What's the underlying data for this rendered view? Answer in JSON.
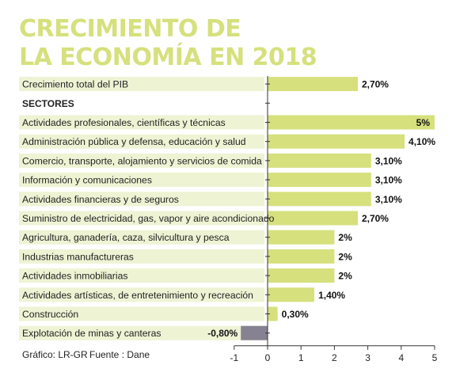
{
  "title_line1": "CRECIMIENTO DE",
  "title_line2": "LA ECONOMÍA EN 2018",
  "footer": {
    "credit": "Gráfico: LR-GR",
    "source": "Fuente : Dane"
  },
  "colors": {
    "bar": "#d6e07d",
    "negative_bar": "#878291",
    "band": "#eef3d4",
    "title": "#d6e07d"
  },
  "chart_data": {
    "type": "bar",
    "orientation": "horizontal",
    "categories": [
      "Crecimiento total del PIB",
      "SECTORES",
      "Actividades profesionales, científicas y técnicas",
      "Administración pública y defensa, educación y salud",
      "Comercio, transporte, alojamiento y servicios de comida",
      "Información y comunicaciones",
      "Actividades financieras y de seguros",
      "Suministro de electricidad, gas, vapor y aire acondicionado",
      "Agricultura, ganadería, caza, silvicultura y pesca",
      "Industrias manufactureras",
      "Actividades inmobiliarias",
      "Actividades artísticas, de entretenimiento y recreación",
      "Construcción",
      "Explotación de minas y canteras"
    ],
    "values": [
      2.7,
      null,
      5,
      4.1,
      3.1,
      3.1,
      3.1,
      2.7,
      2,
      2,
      2,
      1.4,
      0.3,
      -0.8
    ],
    "value_labels": [
      "2,70%",
      "",
      "5%",
      "4,10%",
      "3,10%",
      "3,10%",
      "3,10%",
      "2,70%",
      "2%",
      "2%",
      "2%",
      "1,40%",
      "0,30%",
      "-0,80%"
    ],
    "xlim": [
      -1,
      5
    ],
    "xticks": [
      -1,
      0,
      1,
      2,
      3,
      4,
      5
    ],
    "grid": false,
    "title": "CRECIMIENTO DE LA ECONOMÍA EN 2018",
    "xlabel": "",
    "ylabel": ""
  }
}
